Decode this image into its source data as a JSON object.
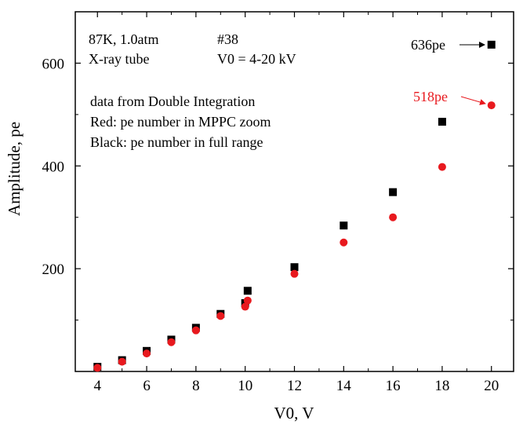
{
  "chart_data": {
    "type": "scatter",
    "xlabel": "V0, V",
    "ylabel": "Amplitude, pe",
    "xlim": [
      3.1,
      20.9
    ],
    "ylim": [
      0,
      700
    ],
    "x_ticks": [
      4,
      6,
      8,
      10,
      12,
      14,
      16,
      18,
      20
    ],
    "y_ticks": [
      200,
      400,
      600
    ],
    "grid": false,
    "series": [
      {
        "color": "#000000",
        "marker": "square",
        "points": [
          [
            4,
            9
          ],
          [
            5,
            22
          ],
          [
            6,
            40
          ],
          [
            7,
            62
          ],
          [
            8,
            85
          ],
          [
            9,
            112
          ],
          [
            10,
            133
          ],
          [
            10.1,
            157
          ],
          [
            12,
            203
          ],
          [
            14,
            284
          ],
          [
            16,
            349
          ],
          [
            18,
            486
          ],
          [
            20,
            636
          ]
        ]
      },
      {
        "color": "#e8191e",
        "marker": "circle",
        "points": [
          [
            4,
            7
          ],
          [
            5,
            19
          ],
          [
            6,
            35
          ],
          [
            7,
            57
          ],
          [
            8,
            80
          ],
          [
            9,
            108
          ],
          [
            10,
            126
          ],
          [
            10.1,
            138
          ],
          [
            12,
            190
          ],
          [
            14,
            251
          ],
          [
            16,
            300
          ],
          [
            18,
            398
          ],
          [
            20,
            518
          ]
        ]
      }
    ],
    "annotations": {
      "top_left": [
        "87K, 1.0atm",
        "X-ray tube"
      ],
      "top_mid": [
        "#38",
        "V0 = 4-20 kV"
      ],
      "notes": [
        "data from Double Integration",
        "Red: pe number in MPPC zoom",
        "Black: pe number in full range"
      ],
      "black_label": "636pe",
      "red_label": "518pe"
    }
  }
}
